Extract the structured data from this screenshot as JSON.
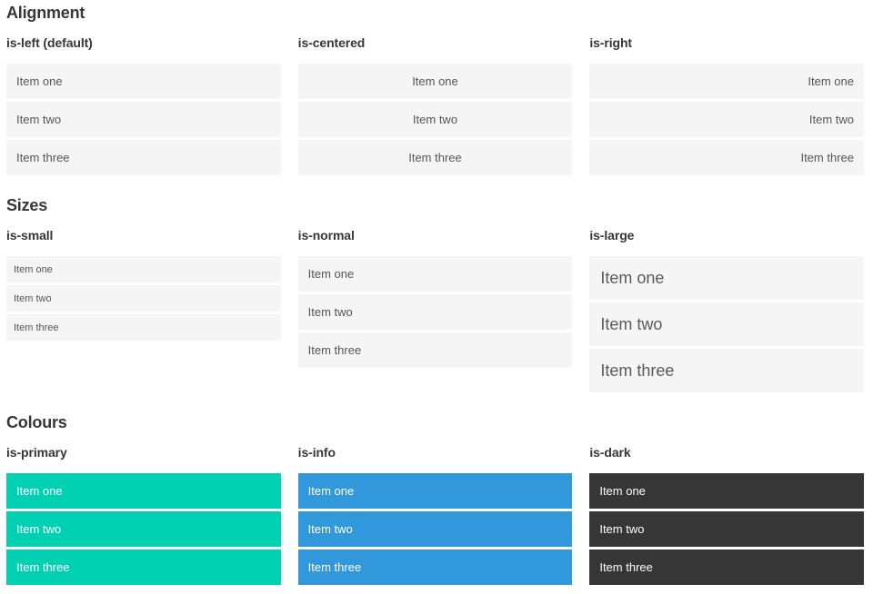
{
  "items": [
    "Item one",
    "Item two",
    "Item three"
  ],
  "colors": {
    "item_light_bg": "#f5f5f5",
    "item_light_text": "#555555",
    "heading_text": "#363636",
    "primary": "#00d1b2",
    "info": "#3298dc",
    "dark": "#363636",
    "item_colored_text": "#ffffff"
  },
  "sections": [
    {
      "title": "Alignment",
      "columns": [
        {
          "label": "is-left (default)",
          "variant": "align-left"
        },
        {
          "label": "is-centered",
          "variant": "align-center"
        },
        {
          "label": "is-right",
          "variant": "align-right"
        }
      ]
    },
    {
      "title": "Sizes",
      "columns": [
        {
          "label": "is-small",
          "variant": "size-small"
        },
        {
          "label": "is-normal",
          "variant": "size-normal"
        },
        {
          "label": "is-large",
          "variant": "size-large"
        }
      ]
    },
    {
      "title": "Colours",
      "columns": [
        {
          "label": "is-primary",
          "variant": "color-primary"
        },
        {
          "label": "is-info",
          "variant": "color-info"
        },
        {
          "label": "is-dark",
          "variant": "color-dark"
        }
      ]
    }
  ]
}
